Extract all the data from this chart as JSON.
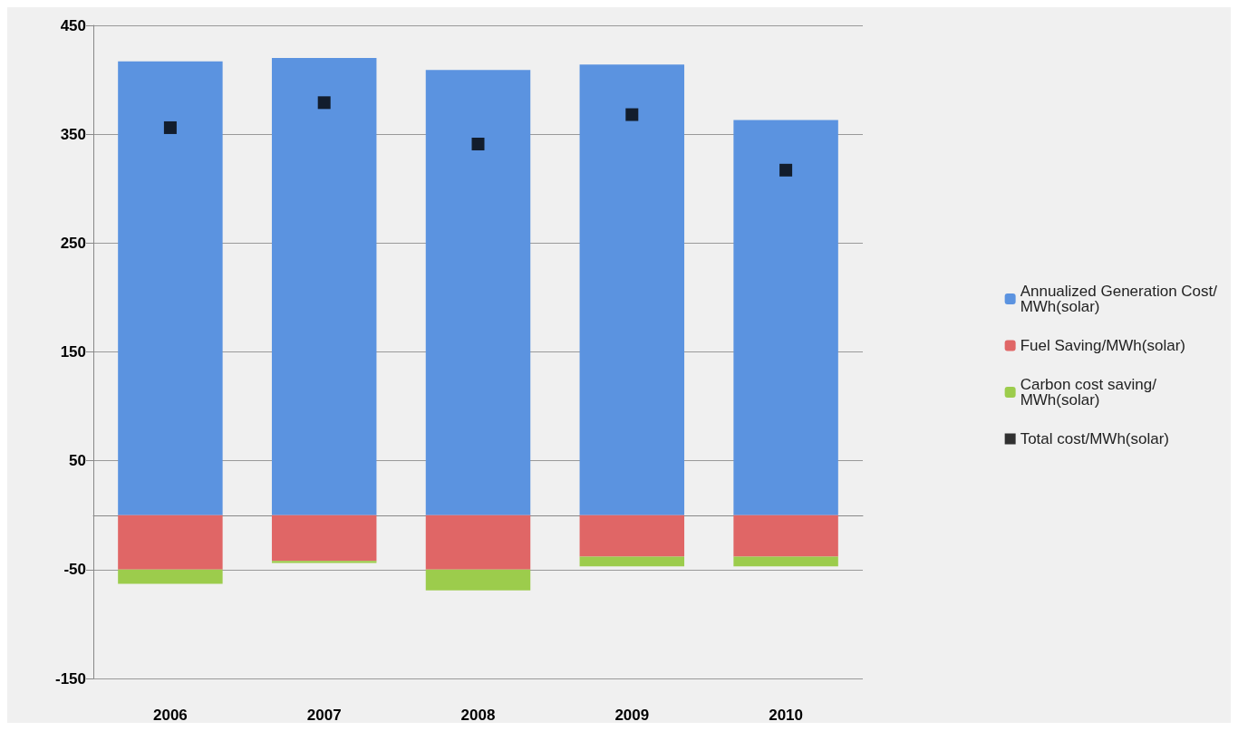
{
  "chart_data": {
    "type": "bar",
    "stacked": true,
    "categories": [
      "2006",
      "2007",
      "2008",
      "2009",
      "2010"
    ],
    "series": [
      {
        "name": "Annualized Generation Cost/MWh(solar)",
        "color": "#5b93e0",
        "values": [
          417,
          420,
          409,
          414,
          363
        ]
      },
      {
        "name": "Fuel Saving/MWh(solar)",
        "color": "#e06666",
        "values": [
          -50,
          -42,
          -50,
          -38,
          -38
        ]
      },
      {
        "name": "Carbon cost saving/MWh(solar)",
        "color": "#9ccc4c",
        "values": [
          -13,
          -2,
          -19,
          -9,
          -9
        ]
      },
      {
        "name": "Total cost/MWh(solar)",
        "type": "scatter",
        "marker": "square",
        "color": "#000000",
        "values": [
          356,
          379,
          341,
          368,
          317
        ]
      }
    ],
    "ylim": [
      -150,
      450
    ],
    "yticks": [
      -150,
      -50,
      50,
      150,
      250,
      350,
      450
    ],
    "grid": "y",
    "legend": "right"
  }
}
